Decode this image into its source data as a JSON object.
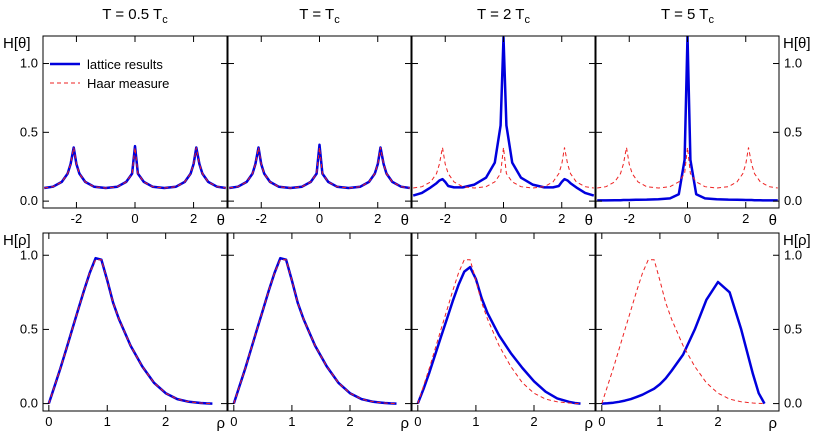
{
  "chart_data": {
    "type": "line",
    "columns": [
      {
        "title_main": "T = 0.5 T",
        "title_sub": "c"
      },
      {
        "title_main": "T = T",
        "title_sub": "c"
      },
      {
        "title_main": "T = 2 T",
        "title_sub": "c"
      },
      {
        "title_main": "T = 5 T",
        "title_sub": "c"
      }
    ],
    "rows": [
      {
        "ylabel": "H[θ]",
        "xlabel": "θ",
        "xlim": [
          -3.14159,
          3.14159
        ],
        "ylim": [
          -0.05,
          1.2
        ],
        "xticks": [
          -2,
          0,
          2
        ],
        "xticklabels": [
          "-2",
          "0",
          "2"
        ],
        "yticks": [
          0,
          0.5,
          1.0
        ],
        "yticklabels": [
          "0.0",
          "0.5",
          "1.0"
        ]
      },
      {
        "ylabel": "H[ρ]",
        "xlabel": "ρ",
        "xlim": [
          -0.1,
          3.05
        ],
        "ylim": [
          -0.05,
          1.15
        ],
        "xticks": [
          0,
          1,
          2
        ],
        "xticklabels": [
          "0",
          "1",
          "2"
        ],
        "yticks": [
          0,
          0.5,
          1.0
        ],
        "yticklabels": [
          "0.0",
          "0.5",
          "1.0"
        ]
      }
    ],
    "legend": {
      "placement": "top-left of first panel",
      "entries": [
        {
          "name": "lattice results",
          "color": "#0000dd",
          "style": "solid"
        },
        {
          "name": "Haar measure",
          "color": "#ee2222",
          "style": "dashed"
        }
      ]
    },
    "series_colors": {
      "lattice": "#0000dd",
      "haar": "#ee2222"
    },
    "theta_x": [
      -3.1,
      -2.8,
      -2.5,
      -2.3,
      -2.2,
      -2.094,
      -2.0,
      -1.9,
      -1.7,
      -1.4,
      -1.0,
      -0.6,
      -0.3,
      -0.1,
      0,
      0.1,
      0.3,
      0.6,
      1.0,
      1.4,
      1.7,
      1.9,
      2.0,
      2.094,
      2.2,
      2.3,
      2.5,
      2.8,
      3.1
    ],
    "theta_haar": [
      0.095,
      0.105,
      0.14,
      0.2,
      0.27,
      0.39,
      0.27,
      0.2,
      0.14,
      0.105,
      0.095,
      0.105,
      0.14,
      0.2,
      0.39,
      0.2,
      0.14,
      0.105,
      0.095,
      0.105,
      0.14,
      0.2,
      0.27,
      0.39,
      0.27,
      0.2,
      0.14,
      0.105,
      0.095
    ],
    "theta_lattice": [
      [
        0.095,
        0.105,
        0.14,
        0.2,
        0.27,
        0.39,
        0.27,
        0.2,
        0.14,
        0.105,
        0.095,
        0.105,
        0.14,
        0.2,
        0.4,
        0.2,
        0.14,
        0.105,
        0.095,
        0.105,
        0.14,
        0.2,
        0.27,
        0.39,
        0.27,
        0.2,
        0.14,
        0.105,
        0.095
      ],
      [
        0.095,
        0.105,
        0.14,
        0.2,
        0.27,
        0.39,
        0.27,
        0.2,
        0.14,
        0.105,
        0.095,
        0.105,
        0.14,
        0.2,
        0.41,
        0.2,
        0.14,
        0.105,
        0.095,
        0.105,
        0.14,
        0.2,
        0.27,
        0.39,
        0.27,
        0.2,
        0.14,
        0.105,
        0.095
      ],
      [
        0.04,
        0.06,
        0.1,
        0.13,
        0.15,
        0.16,
        0.14,
        0.11,
        0.1,
        0.1,
        0.12,
        0.17,
        0.28,
        0.55,
        1.19,
        0.55,
        0.28,
        0.17,
        0.12,
        0.1,
        0.1,
        0.11,
        0.14,
        0.16,
        0.15,
        0.13,
        0.1,
        0.06,
        0.04
      ],
      [
        0.005,
        0.005,
        0.006,
        0.007,
        0.008,
        0.008,
        0.008,
        0.009,
        0.01,
        0.011,
        0.014,
        0.02,
        0.05,
        0.3,
        1.2,
        0.3,
        0.05,
        0.02,
        0.014,
        0.011,
        0.01,
        0.009,
        0.008,
        0.008,
        0.008,
        0.007,
        0.006,
        0.005,
        0.005
      ]
    ],
    "rho_x": [
      0,
      0.1,
      0.2,
      0.3,
      0.4,
      0.5,
      0.6,
      0.7,
      0.8,
      0.9,
      1.0,
      1.1,
      1.2,
      1.4,
      1.6,
      1.8,
      2.0,
      2.2,
      2.4,
      2.6,
      2.7,
      2.8
    ],
    "rho_haar": [
      0.0,
      0.12,
      0.24,
      0.37,
      0.5,
      0.63,
      0.76,
      0.88,
      0.97,
      0.97,
      0.83,
      0.68,
      0.57,
      0.39,
      0.25,
      0.14,
      0.07,
      0.03,
      0.012,
      0.004,
      0.001,
      0.0
    ],
    "rho_lattice": [
      [
        0.0,
        0.12,
        0.24,
        0.37,
        0.5,
        0.63,
        0.76,
        0.88,
        0.98,
        0.97,
        0.83,
        0.68,
        0.57,
        0.39,
        0.25,
        0.14,
        0.07,
        0.03,
        0.012,
        0.004,
        0.001,
        0.0
      ],
      [
        0.0,
        0.12,
        0.24,
        0.37,
        0.5,
        0.63,
        0.76,
        0.88,
        0.98,
        0.97,
        0.83,
        0.68,
        0.57,
        0.39,
        0.25,
        0.14,
        0.07,
        0.03,
        0.012,
        0.004,
        0.001,
        0.0
      ],
      [
        0.0,
        0.1,
        0.21,
        0.33,
        0.45,
        0.57,
        0.69,
        0.8,
        0.89,
        0.92,
        0.84,
        0.71,
        0.61,
        0.46,
        0.34,
        0.24,
        0.15,
        0.08,
        0.035,
        0.012,
        0.004,
        0.0
      ],
      [
        0.0,
        0.002,
        0.006,
        0.012,
        0.02,
        0.03,
        0.045,
        0.06,
        0.08,
        0.1,
        0.13,
        0.17,
        0.22,
        0.33,
        0.5,
        0.7,
        0.82,
        0.75,
        0.5,
        0.2,
        0.07,
        0.0
      ]
    ]
  }
}
